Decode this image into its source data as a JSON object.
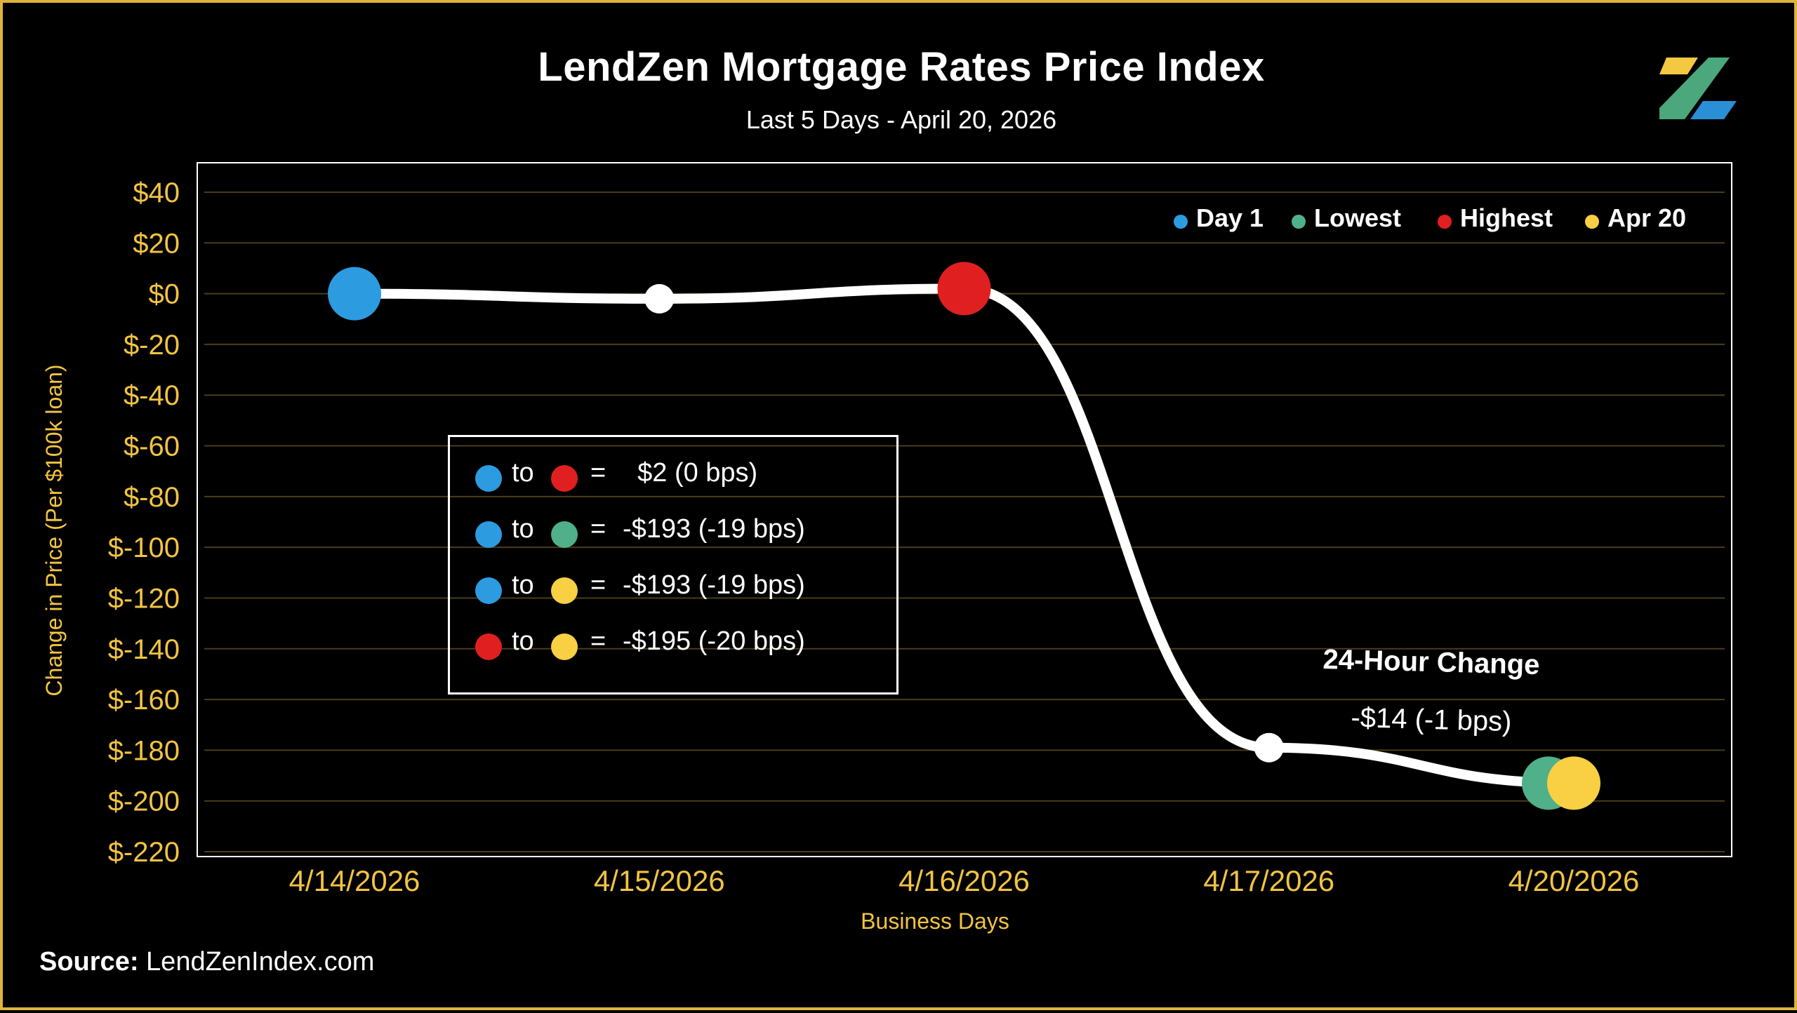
{
  "title": "LendZen Mortgage Rates Price Index",
  "subtitle": "Last 5 Days - April 20, 2026",
  "source_label": "Source:",
  "source_text": "LendZenIndex.com",
  "colors": {
    "background": "#000000",
    "frame": "#e0b43a",
    "axis_text": "#f2c443",
    "line": "#ffffff",
    "day1": "#2d9be0",
    "lowest": "#4fb08a",
    "highest": "#e02020",
    "apr20": "#f9cf44",
    "logo_yellow": "#f5c842",
    "logo_green": "#4aa87c",
    "logo_blue": "#2a8fd6"
  },
  "top_legend": [
    {
      "label": "Day 1",
      "color": "#2d9be0"
    },
    {
      "label": "Lowest",
      "color": "#4fb08a"
    },
    {
      "label": "Highest",
      "color": "#e02020"
    },
    {
      "label": "Apr 20",
      "color": "#f9cf44"
    }
  ],
  "comparison_box": {
    "connector": "to",
    "equals": "=",
    "rows": [
      {
        "from_color": "#2d9be0",
        "to_color": "#e02020",
        "value": "  $2 (0 bps)"
      },
      {
        "from_color": "#2d9be0",
        "to_color": "#4fb08a",
        "value": "-$193 (-19 bps)"
      },
      {
        "from_color": "#2d9be0",
        "to_color": "#f9cf44",
        "value": "-$193 (-19 bps)"
      },
      {
        "from_color": "#e02020",
        "to_color": "#f9cf44",
        "value": "-$195 (-20 bps)"
      }
    ]
  },
  "annotation": {
    "title": "24-Hour Change",
    "value": "-$14 (-1 bps)"
  },
  "chart_data": {
    "type": "line",
    "title": "LendZen Mortgage Rates Price Index",
    "subtitle": "Last 5 Days - April 20, 2026",
    "xlabel": "Business Days",
    "ylabel": "Change in Price (Per $100k loan)",
    "categories": [
      "4/14/2026",
      "4/15/2026",
      "4/16/2026",
      "4/17/2026",
      "4/20/2026"
    ],
    "series": [
      {
        "values": [
          0,
          -2,
          2,
          -179,
          -193
        ]
      }
    ],
    "y_ticks": [
      40,
      20,
      0,
      -20,
      -40,
      -60,
      -80,
      -100,
      -120,
      -140,
      -160,
      -180,
      -200,
      -220
    ],
    "y_tick_labels": [
      "$40",
      "$20",
      "$0",
      "$-20",
      "$-40",
      "$-60",
      "$-80",
      "$-100",
      "$-120",
      "$-140",
      "$-160",
      "$-180",
      "$-200",
      "$-220"
    ],
    "ylim": [
      -220,
      40
    ],
    "grid": true,
    "legend": "top-right",
    "markers": [
      {
        "label": "Day 1",
        "category": "4/14/2026",
        "value": 0
      },
      {
        "label": "Highest",
        "category": "4/16/2026",
        "value": 2
      },
      {
        "label": "Lowest",
        "category": "4/20/2026",
        "value": -193
      },
      {
        "label": "Apr 20",
        "category": "4/20/2026",
        "value": -193
      }
    ]
  }
}
